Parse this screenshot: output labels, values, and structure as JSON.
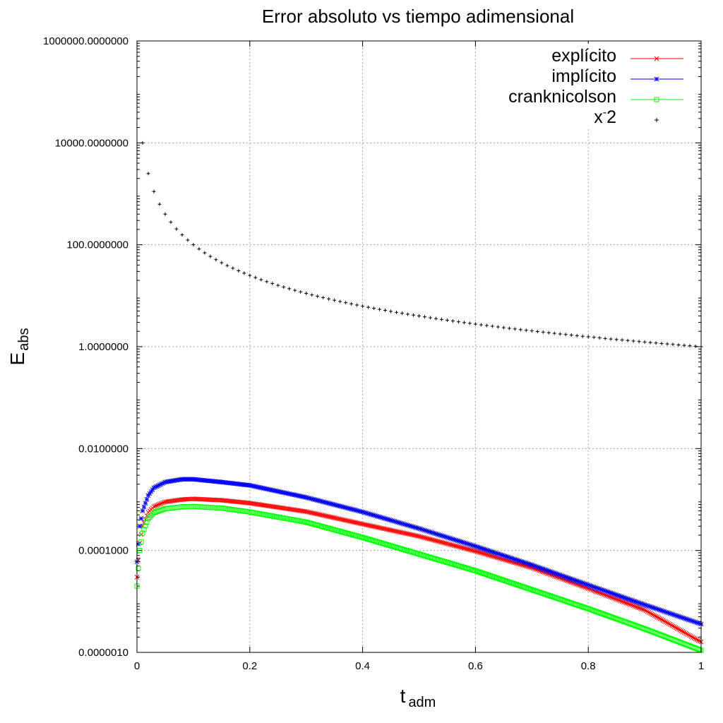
{
  "chart_data": {
    "type": "scatter",
    "title": "Error absoluto vs tiempo adimensional",
    "xlabel": {
      "main": "t",
      "sub": "adm"
    },
    "ylabel": {
      "main": "E",
      "sub": "abs"
    },
    "x_scale": "linear",
    "y_scale": "log",
    "xlim": [
      0,
      1
    ],
    "ylim": [
      1e-06,
      1000000
    ],
    "x_ticks": [
      {
        "value": 0,
        "label": "0"
      },
      {
        "value": 0.2,
        "label": "0.2"
      },
      {
        "value": 0.4,
        "label": "0.4"
      },
      {
        "value": 0.6,
        "label": "0.6"
      },
      {
        "value": 0.8,
        "label": "0.8"
      },
      {
        "value": 1,
        "label": "1"
      }
    ],
    "y_ticks": [
      {
        "value": 1e-06,
        "label": "0.0000010"
      },
      {
        "value": 0.0001,
        "label": "0.0001000"
      },
      {
        "value": 0.01,
        "label": "0.0100000"
      },
      {
        "value": 1,
        "label": "1.0000000"
      },
      {
        "value": 100,
        "label": "100.0000000"
      },
      {
        "value": 10000,
        "label": "10000.0000000"
      },
      {
        "value": 1000000,
        "label": "1000000.0000000"
      }
    ],
    "grid": true,
    "legend_position": "top-right",
    "series": [
      {
        "name": "explícito",
        "color": "#ff0000",
        "marker": "x",
        "x": [
          0.0,
          0.005,
          0.01,
          0.02,
          0.03,
          0.05,
          0.08,
          0.1,
          0.15,
          0.2,
          0.3,
          0.4,
          0.5,
          0.6,
          0.7,
          0.8,
          0.9,
          1.0
        ],
        "y": [
          3e-05,
          0.00014,
          0.0003,
          0.00056,
          0.00073,
          0.0009,
          0.001,
          0.00103,
          0.00097,
          0.00085,
          0.00058,
          0.00033,
          0.00019,
          9.7e-05,
          4.6e-05,
          1.8e-05,
          6.8e-06,
          1.6e-06
        ]
      },
      {
        "name": "implícito",
        "color": "#0000ff",
        "marker": "asterisk",
        "x": [
          0.0,
          0.005,
          0.01,
          0.02,
          0.03,
          0.05,
          0.08,
          0.1,
          0.15,
          0.2,
          0.3,
          0.4,
          0.5,
          0.6,
          0.7,
          0.8,
          0.9,
          1.0
        ],
        "y": [
          6e-05,
          0.0003,
          0.0006,
          0.0012,
          0.0017,
          0.0022,
          0.0025,
          0.0025,
          0.0022,
          0.0019,
          0.0011,
          0.00057,
          0.00027,
          0.000121,
          5.2e-05,
          2.1e-05,
          8.6e-06,
          3.6e-06
        ]
      },
      {
        "name": "cranknicolson",
        "color": "#00ff00",
        "marker": "square",
        "x": [
          0.0,
          0.005,
          0.01,
          0.02,
          0.03,
          0.05,
          0.08,
          0.1,
          0.15,
          0.2,
          0.3,
          0.4,
          0.5,
          0.6,
          0.7,
          0.8,
          0.9,
          1.0
        ],
        "y": [
          2e-05,
          0.0001,
          0.00022,
          0.00042,
          0.00055,
          0.00066,
          0.00072,
          0.00073,
          0.00068,
          0.00057,
          0.00036,
          0.00018,
          8.5e-05,
          4e-05,
          1.7e-05,
          7.2e-06,
          2.9e-06,
          1.1e-06
        ]
      },
      {
        "name": "x^-2",
        "color": "#000000",
        "marker": "plus",
        "formula": "y = x^-2",
        "x_start": 0.01,
        "x_end": 1.0,
        "x_step": 0.01
      }
    ]
  },
  "legend": [
    {
      "label": "explícito",
      "color": "#ff0000",
      "marker": "x"
    },
    {
      "label": "implícito",
      "color": "#0000ff",
      "marker": "asterisk"
    },
    {
      "label": "cranknicolson",
      "color": "#00ff00",
      "marker": "square"
    },
    {
      "label": "x",
      "sup": "-",
      "tail": "2",
      "color": "#000000",
      "marker": "plus"
    }
  ]
}
